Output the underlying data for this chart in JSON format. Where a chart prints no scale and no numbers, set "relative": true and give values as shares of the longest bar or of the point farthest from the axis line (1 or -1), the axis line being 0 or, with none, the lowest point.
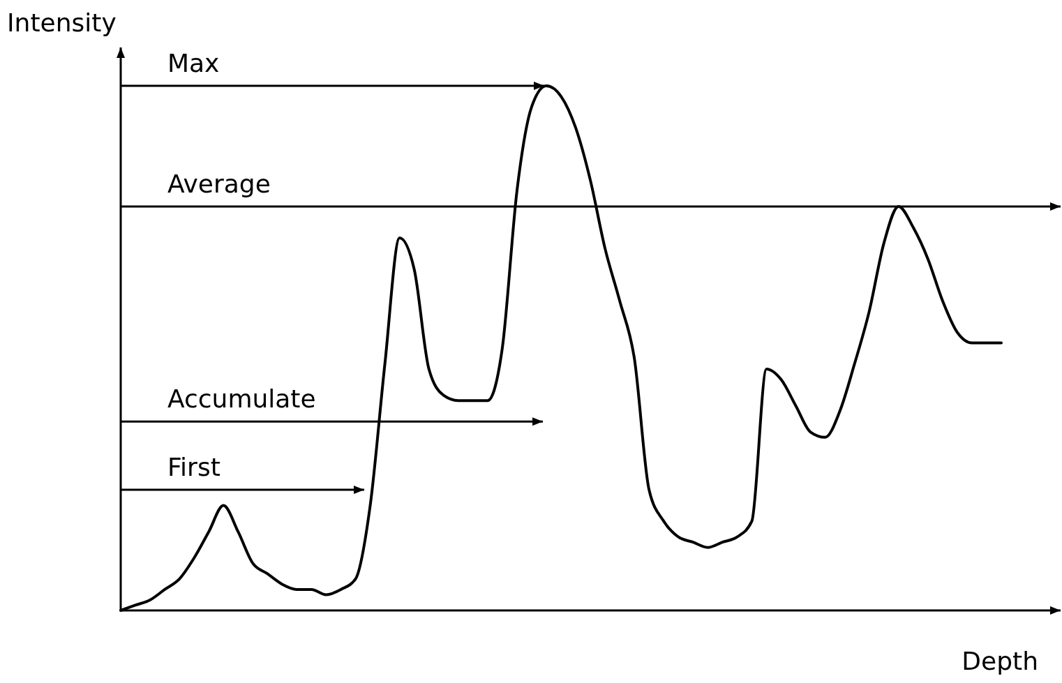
{
  "chart_data": {
    "type": "line",
    "relative": true,
    "xlabel": "Depth",
    "ylabel": "Intensity",
    "categories": [
      null,
      null,
      null,
      null,
      null,
      null,
      null,
      null,
      null,
      null,
      null,
      null,
      null,
      null,
      null,
      null,
      null,
      null,
      null,
      null,
      null,
      null,
      null,
      null,
      null,
      null,
      null,
      null,
      null,
      null,
      null,
      null,
      null,
      null,
      null,
      null,
      null,
      null,
      null,
      null,
      null,
      null,
      null,
      null,
      null,
      null,
      null,
      null,
      null,
      null,
      null,
      null,
      null,
      null,
      null,
      null,
      null,
      null,
      null,
      null,
      null
    ],
    "series": [
      {
        "color": "#000000",
        "values": [
          0,
          0.01,
          0.02,
          0.04,
          0.06,
          0.1,
          0.15,
          0.2,
          0.15,
          0.09,
          0.07,
          0.05,
          0.04,
          0.04,
          0.03,
          0.04,
          0.06,
          0.2,
          0.47,
          0.71,
          0.65,
          0.46,
          0.41,
          0.4,
          0.4,
          0.4,
          0.5,
          0.8,
          0.96,
          1,
          0.98,
          0.92,
          0.82,
          0.69,
          0.59,
          0.48,
          0.23,
          0.17,
          0.14,
          0.13,
          0.12,
          0.13,
          0.14,
          0.17,
          0.46,
          0.44,
          0.39,
          0.34,
          0.33,
          0.38,
          0.47,
          0.57,
          0.7,
          0.77,
          0.73,
          0.67,
          0.59,
          0.53,
          0.51,
          0.51,
          0.51
        ]
      }
    ],
    "ref_lines": [
      {
        "axis": "y",
        "value": 1,
        "label": "Max",
        "color": "#000000"
      },
      {
        "axis": "y",
        "value": 0.77,
        "label": "Average",
        "color": "#000000"
      },
      {
        "axis": "y",
        "value": 0.36,
        "label": "Accumulate",
        "color": "#000000"
      },
      {
        "axis": "y",
        "value": 0.23,
        "label": "First",
        "color": "#000000"
      }
    ],
    "grid": false,
    "marker": "none",
    "line_style": "solid"
  }
}
